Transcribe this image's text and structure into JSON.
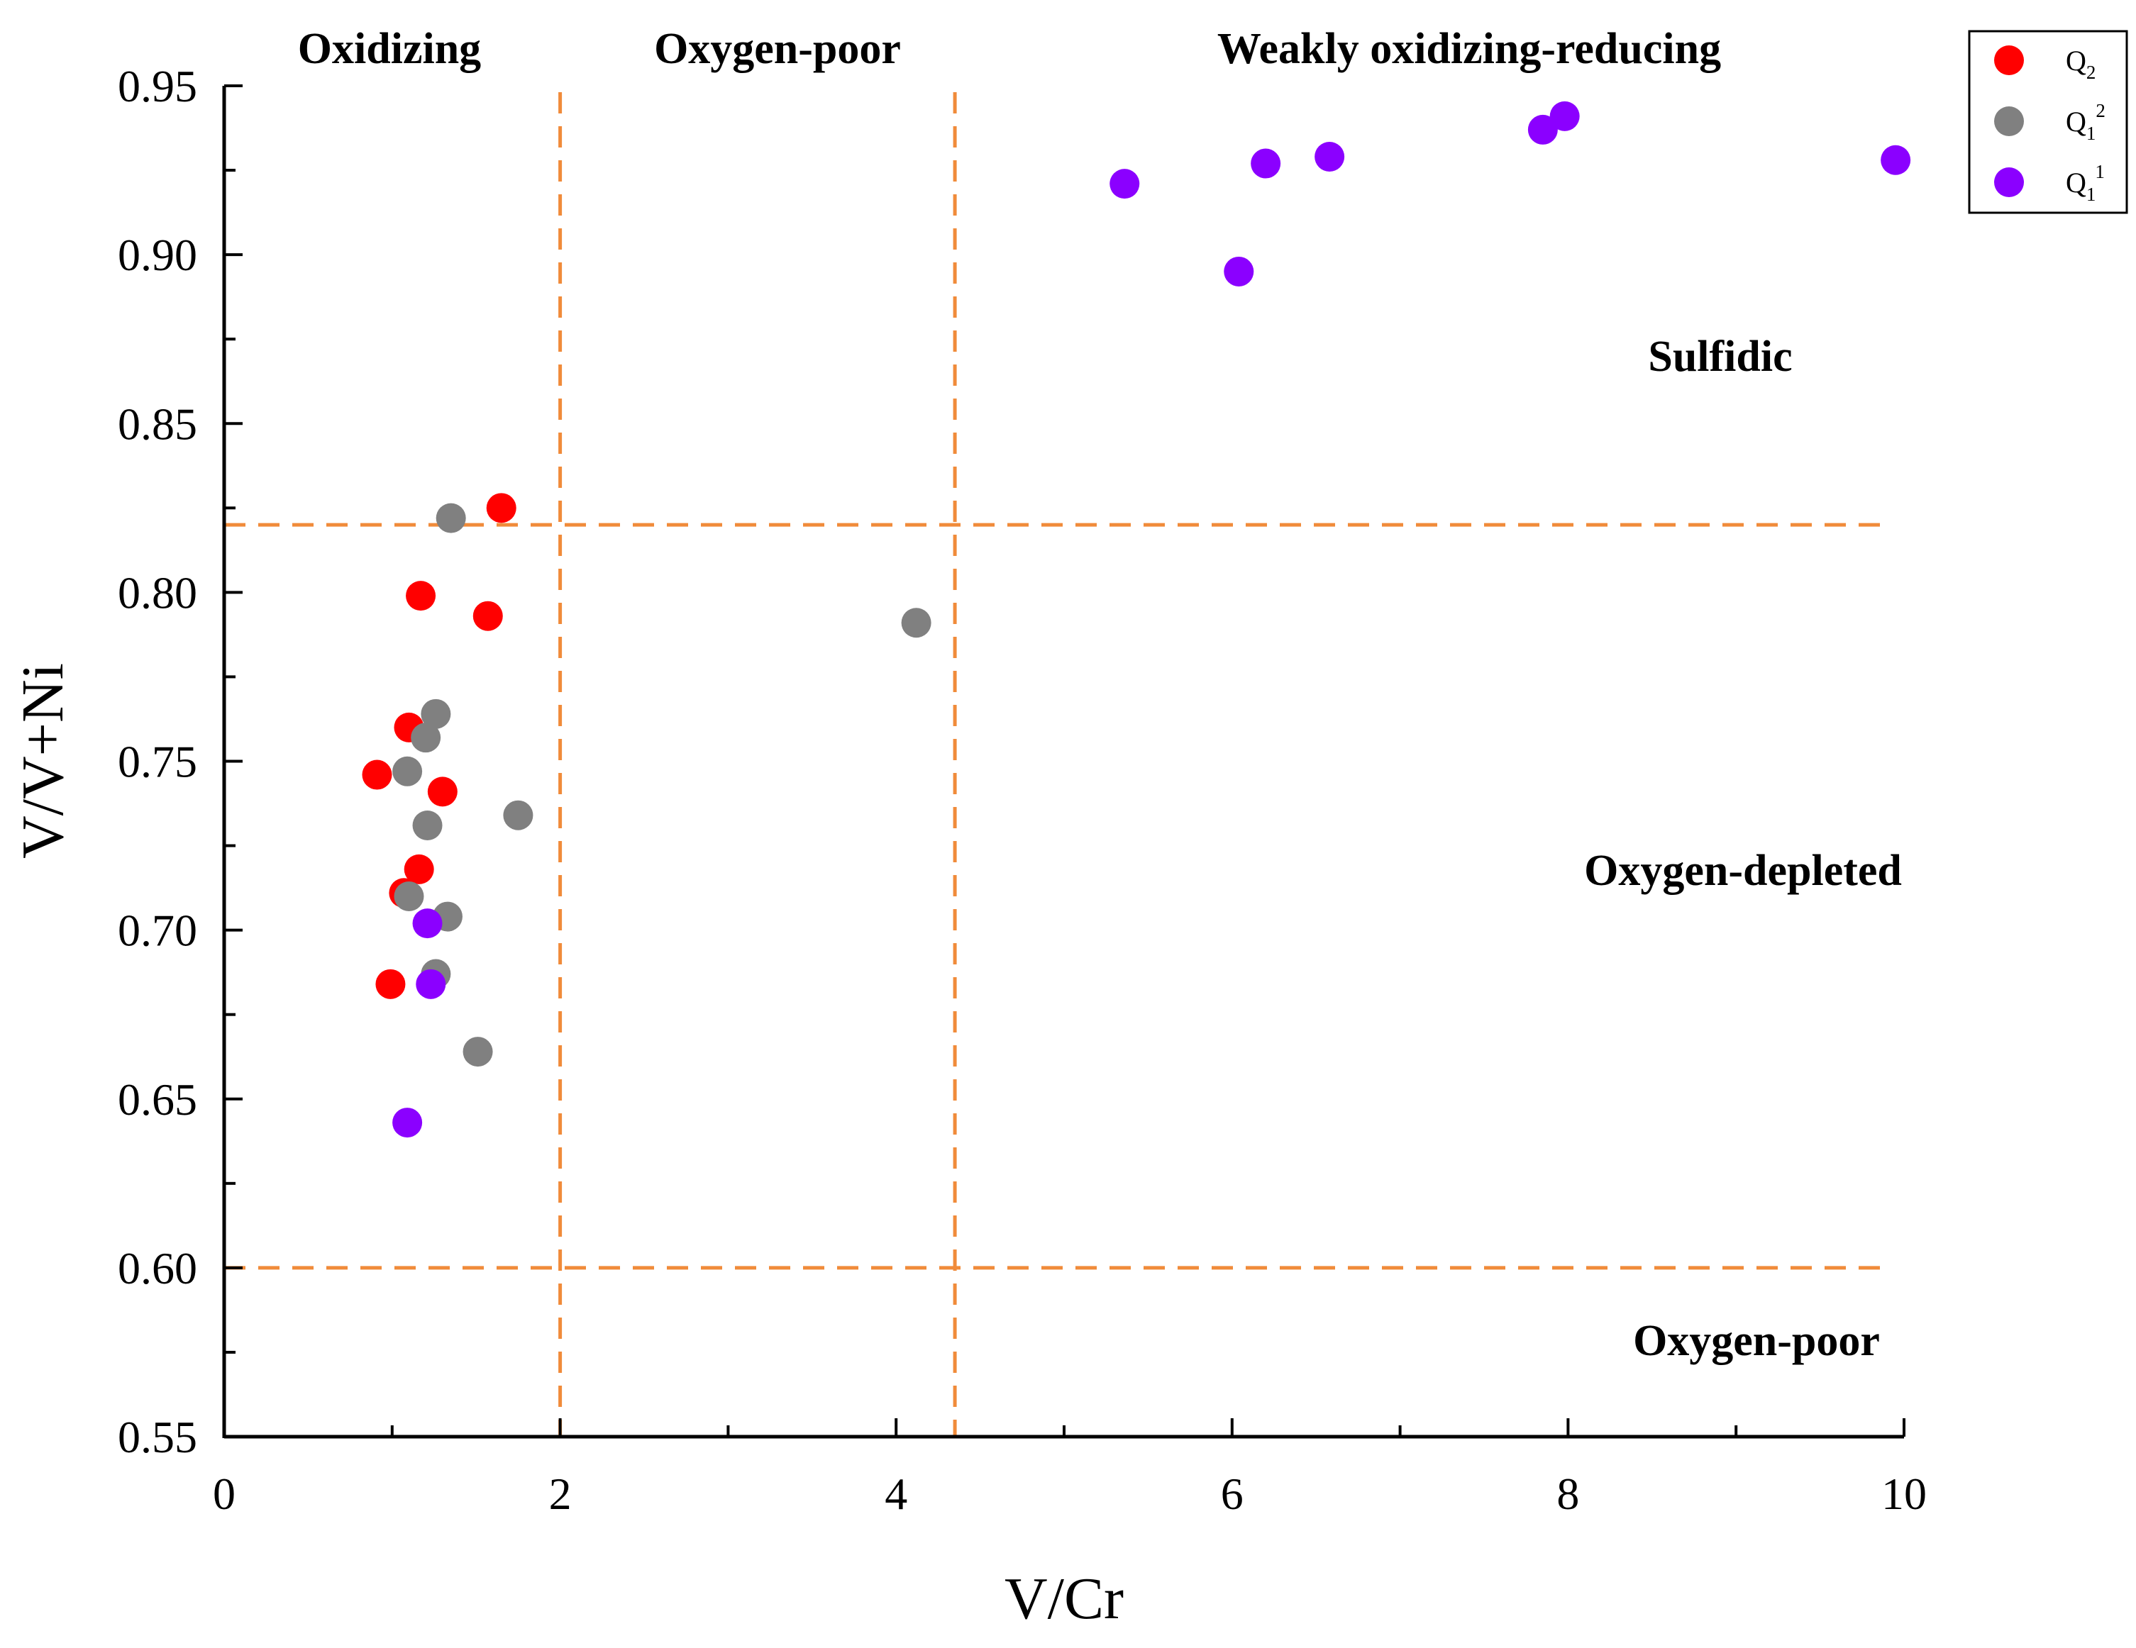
{
  "chart_data": {
    "type": "scatter",
    "title": "",
    "xlabel": "V/Cr",
    "ylabel": "V/V+Ni",
    "xlim": [
      0,
      10
    ],
    "ylim": [
      0.55,
      0.95
    ],
    "x_ticks": [
      "0",
      "2",
      "4",
      "6",
      "8",
      "10"
    ],
    "x_tick_values": [
      0,
      2,
      4,
      6,
      8,
      10
    ],
    "y_ticks": [
      "0.55",
      "0.60",
      "0.65",
      "0.70",
      "0.75",
      "0.80",
      "0.85",
      "0.90",
      "0.95"
    ],
    "y_tick_values": [
      0.55,
      0.6,
      0.65,
      0.7,
      0.75,
      0.8,
      0.85,
      0.9,
      0.95
    ],
    "reference_lines": {
      "vertical": [
        2.0,
        4.35
      ],
      "horizontal": [
        0.82,
        0.6
      ],
      "color": "#F08B3A"
    },
    "region_labels": {
      "oxidizing": "Oxidizing",
      "oxygen_poor_top": "Oxygen-poor",
      "weakly_oxidizing_reducing": "Weakly oxidizing-reducing",
      "sulfidic": "Sulfidic",
      "oxygen_depleted": "Oxygen-depleted",
      "oxygen_poor_bottom": "Oxygen-poor"
    },
    "legend_position": "top-right",
    "series": [
      {
        "name": "Q2",
        "label_main": "Q",
        "label_sub": "2",
        "label_sup": "",
        "color": "#FF0000",
        "x": [
          1.65,
          1.17,
          1.57,
          1.1,
          0.91,
          1.3,
          1.16,
          1.07,
          0.99
        ],
        "y": [
          0.825,
          0.799,
          0.793,
          0.76,
          0.746,
          0.741,
          0.718,
          0.711,
          0.684
        ]
      },
      {
        "name": "Q1^2",
        "label_main": "Q",
        "label_sub": "1",
        "label_sup": "2",
        "color": "#808080",
        "x": [
          1.35,
          4.12,
          1.26,
          1.2,
          1.09,
          1.75,
          1.21,
          1.1,
          1.33,
          1.26,
          1.51
        ],
        "y": [
          0.822,
          0.791,
          0.764,
          0.757,
          0.747,
          0.734,
          0.731,
          0.71,
          0.704,
          0.687,
          0.664
        ]
      },
      {
        "name": "Q1^1",
        "label_main": "Q",
        "label_sub": "1",
        "label_sup": "1",
        "color": "#8B00FF",
        "x": [
          5.36,
          6.04,
          6.2,
          6.58,
          7.85,
          7.98,
          9.95,
          1.21,
          1.23,
          1.09
        ],
        "y": [
          0.921,
          0.895,
          0.927,
          0.929,
          0.937,
          0.941,
          0.928,
          0.702,
          0.684,
          0.643
        ]
      }
    ]
  }
}
